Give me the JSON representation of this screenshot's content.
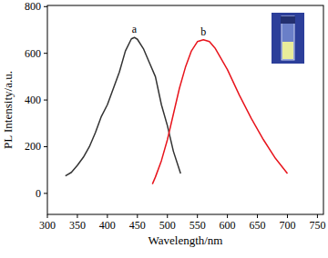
{
  "chart_data": {
    "type": "line",
    "x_label": "Wavelength/nm",
    "y_label": "PL Intensity/a.u.",
    "annotations": [
      "a",
      "b"
    ],
    "series": [
      {
        "color": "#333333",
        "x": [
          330,
          340,
          350,
          360,
          370,
          380,
          390,
          400,
          410,
          420,
          430,
          440,
          445,
          450,
          460,
          470,
          480,
          490,
          500,
          510,
          522
        ],
        "values": [
          75,
          90,
          120,
          155,
          200,
          260,
          330,
          380,
          450,
          520,
          610,
          662,
          668,
          660,
          620,
          560,
          500,
          380,
          290,
          180,
          85
        ]
      },
      {
        "color": "#e8141c",
        "x": [
          475,
          480,
          490,
          500,
          510,
          520,
          530,
          540,
          550,
          560,
          570,
          580,
          600,
          620,
          640,
          660,
          680,
          700
        ],
        "values": [
          40,
          70,
          140,
          230,
          340,
          450,
          540,
          610,
          650,
          658,
          650,
          620,
          530,
          420,
          320,
          230,
          150,
          85
        ]
      }
    ],
    "xlim": [
      300,
      760
    ],
    "xticks": [
      300,
      350,
      400,
      450,
      500,
      550,
      600,
      650,
      700,
      750
    ],
    "ylim": [
      -90,
      805
    ],
    "yticks": [
      0,
      200,
      400,
      600,
      800
    ],
    "grid": false
  }
}
